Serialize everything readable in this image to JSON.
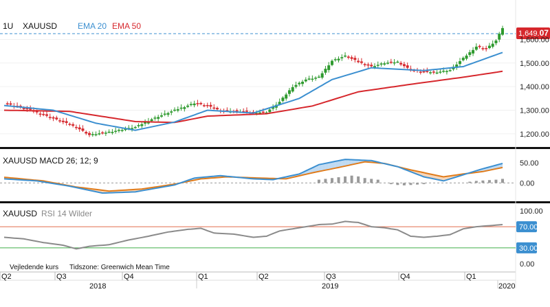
{
  "main_panel": {
    "interval": "1U",
    "symbol": "XAUUSD",
    "ema20_label": "EMA 20",
    "ema50_label": "EMA 50",
    "last_price_int": "1,649.",
    "last_price_dec": "07",
    "y_ticks": [
      "1,600.00",
      "1,500.00",
      "1,400.00",
      "1,300.00",
      "1,200.00"
    ]
  },
  "macd_panel": {
    "label": "XAUUSD  MACD 26; 12; 9",
    "y_ticks": [
      "50.00",
      "0.00"
    ]
  },
  "rsi_panel": {
    "symbol": "XAUUSD",
    "indicator": "RSI 14 Wilder",
    "y_ticks": [
      "100.00",
      "70.00",
      "30.00",
      "0.00"
    ],
    "footer_left": "Vejledende kurs",
    "footer_right": "Tidszone: Greenwich Mean Time"
  },
  "x_axis": {
    "quarters": [
      "Q2",
      "Q3",
      "Q4",
      "Q1",
      "Q2",
      "Q3",
      "Q4",
      "Q1"
    ],
    "years": [
      "2018",
      "2019",
      "2020"
    ]
  },
  "colors": {
    "bull": "#2e9a2e",
    "bear": "#d6272c",
    "ema20": "#3b8fd0",
    "ema50": "#d6272c",
    "macd": "#3b8fd0",
    "signal": "#e07b1a",
    "rsi": "#8a8a8a",
    "rsi_upper": "#e06a4a",
    "rsi_lower": "#3fae48",
    "badge_blue": "#3b8fd0"
  },
  "chart_data": {
    "type": "candlestick",
    "interval": "1 week",
    "x": [
      "2018-Q2",
      "2018-Q3",
      "2018-Q4",
      "2019-Q1",
      "2019-Q2",
      "2019-Q3",
      "2019-Q4",
      "2020-Q1"
    ],
    "close_trend": {
      "points": [
        [
          0,
          1330
        ],
        [
          8,
          1300
        ],
        [
          15,
          1265
        ],
        [
          22,
          1228
        ],
        [
          26,
          1195
        ],
        [
          32,
          1208
        ],
        [
          40,
          1228
        ],
        [
          45,
          1262
        ],
        [
          52,
          1300
        ],
        [
          58,
          1330
        ],
        [
          62,
          1318
        ],
        [
          66,
          1298
        ],
        [
          72,
          1295
        ],
        [
          76,
          1290
        ],
        [
          80,
          1292
        ],
        [
          84,
          1335
        ],
        [
          88,
          1400
        ],
        [
          92,
          1430
        ],
        [
          96,
          1440
        ],
        [
          100,
          1510
        ],
        [
          104,
          1530
        ],
        [
          108,
          1505
        ],
        [
          112,
          1485
        ],
        [
          116,
          1500
        ],
        [
          120,
          1505
        ],
        [
          124,
          1470
        ],
        [
          128,
          1462
        ],
        [
          132,
          1462
        ],
        [
          136,
          1470
        ],
        [
          140,
          1520
        ],
        [
          144,
          1570
        ],
        [
          147,
          1560
        ],
        [
          150,
          1595
        ],
        [
          152,
          1649
        ]
      ]
    },
    "last_close": 1649.07,
    "main_ylim": [
      1150,
      1680
    ],
    "series": [
      {
        "name": "EMA 20",
        "points": [
          [
            0,
            1320
          ],
          [
            15,
            1300
          ],
          [
            28,
            1245
          ],
          [
            40,
            1215
          ],
          [
            52,
            1250
          ],
          [
            62,
            1300
          ],
          [
            76,
            1288
          ],
          [
            90,
            1350
          ],
          [
            100,
            1430
          ],
          [
            112,
            1480
          ],
          [
            128,
            1468
          ],
          [
            140,
            1485
          ],
          [
            152,
            1545
          ]
        ]
      },
      {
        "name": "EMA 50",
        "points": [
          [
            0,
            1300
          ],
          [
            20,
            1295
          ],
          [
            40,
            1252
          ],
          [
            52,
            1248
          ],
          [
            62,
            1275
          ],
          [
            80,
            1285
          ],
          [
            94,
            1318
          ],
          [
            108,
            1378
          ],
          [
            124,
            1410
          ],
          [
            140,
            1440
          ],
          [
            152,
            1465
          ]
        ]
      }
    ],
    "macd": {
      "ylim": [
        -40,
        75
      ],
      "macd_points": [
        [
          0,
          10
        ],
        [
          10,
          5
        ],
        [
          20,
          -8
        ],
        [
          30,
          -25
        ],
        [
          40,
          -22
        ],
        [
          52,
          -5
        ],
        [
          58,
          12
        ],
        [
          66,
          18
        ],
        [
          76,
          10
        ],
        [
          82,
          8
        ],
        [
          90,
          22
        ],
        [
          96,
          45
        ],
        [
          104,
          58
        ],
        [
          112,
          55
        ],
        [
          120,
          40
        ],
        [
          128,
          15
        ],
        [
          134,
          5
        ],
        [
          140,
          20
        ],
        [
          146,
          35
        ],
        [
          152,
          48
        ]
      ],
      "signal_points": [
        [
          0,
          14
        ],
        [
          12,
          5
        ],
        [
          22,
          -10
        ],
        [
          32,
          -20
        ],
        [
          42,
          -15
        ],
        [
          52,
          -3
        ],
        [
          60,
          10
        ],
        [
          68,
          15
        ],
        [
          78,
          12
        ],
        [
          86,
          10
        ],
        [
          94,
          25
        ],
        [
          102,
          38
        ],
        [
          110,
          52
        ],
        [
          116,
          48
        ],
        [
          124,
          32
        ],
        [
          134,
          15
        ],
        [
          140,
          22
        ],
        [
          146,
          28
        ],
        [
          152,
          38
        ]
      ],
      "histogram": [
        [
          96,
          8
        ],
        [
          98,
          10
        ],
        [
          100,
          12
        ],
        [
          102,
          14
        ],
        [
          104,
          16
        ],
        [
          106,
          18
        ],
        [
          108,
          16
        ],
        [
          110,
          12
        ],
        [
          112,
          10
        ],
        [
          114,
          8
        ],
        [
          118,
          -3
        ],
        [
          120,
          -5
        ],
        [
          122,
          -6
        ],
        [
          124,
          -5
        ],
        [
          126,
          -4
        ],
        [
          128,
          -3
        ],
        [
          142,
          3
        ],
        [
          144,
          5
        ],
        [
          146,
          6
        ],
        [
          148,
          7
        ],
        [
          150,
          8
        ],
        [
          152,
          10
        ]
      ]
    },
    "rsi": {
      "ylim": [
        0,
        100
      ],
      "upper": 70,
      "lower": 30,
      "points": [
        [
          0,
          50
        ],
        [
          6,
          47
        ],
        [
          12,
          40
        ],
        [
          18,
          35
        ],
        [
          22,
          28
        ],
        [
          26,
          33
        ],
        [
          32,
          36
        ],
        [
          38,
          45
        ],
        [
          44,
          52
        ],
        [
          50,
          60
        ],
        [
          56,
          65
        ],
        [
          60,
          67
        ],
        [
          64,
          58
        ],
        [
          70,
          56
        ],
        [
          76,
          50
        ],
        [
          80,
          52
        ],
        [
          84,
          62
        ],
        [
          88,
          66
        ],
        [
          92,
          70
        ],
        [
          96,
          74
        ],
        [
          100,
          75
        ],
        [
          104,
          80
        ],
        [
          108,
          78
        ],
        [
          112,
          70
        ],
        [
          116,
          68
        ],
        [
          120,
          64
        ],
        [
          124,
          52
        ],
        [
          128,
          50
        ],
        [
          132,
          52
        ],
        [
          136,
          55
        ],
        [
          140,
          66
        ],
        [
          144,
          70
        ],
        [
          148,
          72
        ],
        [
          152,
          74
        ]
      ]
    }
  }
}
